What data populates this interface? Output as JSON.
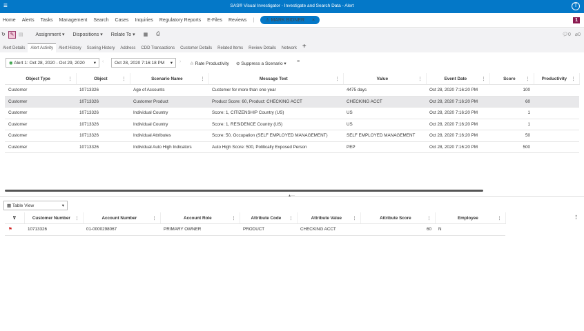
{
  "titlebar": {
    "title": "SAS® Visual Investigator - Investigate and Search Data - Alert",
    "menu_icon": "hamburger-icon",
    "user_icon": "user-icon"
  },
  "nav": {
    "items": [
      "Home",
      "Alerts",
      "Tasks",
      "Management",
      "Search",
      "Cases",
      "Inquiries",
      "Regulatory Reports",
      "E-Files",
      "Reviews"
    ],
    "chip": "MARK BIDNER",
    "badge": "1"
  },
  "toolbar": {
    "assignment": "Assignment ▾",
    "dispositions": "Dispositions ▾",
    "relate_to": "Relate To ▾",
    "comments": "0",
    "attachments": "0"
  },
  "tabs": [
    "Alert Details",
    "Alert Activity",
    "Alert History",
    "Scoring History",
    "Address",
    "CDD Transactions",
    "Customer Details",
    "Related Items",
    "Review Details",
    "Network"
  ],
  "filters": {
    "alert": "Alert 1: Oct 28, 2020 - Oct 29, 2020",
    "date": "Oct 28, 2020 7:16:18 PM",
    "rate": "Rate Productivity",
    "suppress": "Suppress a Scenario ▾"
  },
  "top_table": {
    "columns": [
      "Object Type",
      "Object",
      "Scenario Name",
      "Message Text",
      "Value",
      "Event Date",
      "Score",
      "Productivity"
    ],
    "rows": [
      [
        "Customer",
        "10713326",
        "Age of Accounts",
        "Customer for more than one year",
        "4475 days",
        "Oct 28, 2020 7:16:20 PM",
        "100",
        ""
      ],
      [
        "Customer",
        "10713326",
        "Customer Product",
        "Product Score: 60, Product: CHECKING ACCT",
        "CHECKING ACCT",
        "Oct 28, 2020 7:16:20 PM",
        "60",
        ""
      ],
      [
        "Customer",
        "10713326",
        "Individual Country",
        "Score: 1, CITIZENSHIP Country (US)",
        "US",
        "Oct 28, 2020 7:16:20 PM",
        "1",
        ""
      ],
      [
        "Customer",
        "10713326",
        "Individual Country",
        "Score: 1, RESIDENCE Country (US)",
        "US",
        "Oct 28, 2020 7:16:20 PM",
        "1",
        ""
      ],
      [
        "Customer",
        "10713326",
        "Individual Attributes",
        "Score: 50, Occupation (SELF EMPLOYED MANAGEMENT)",
        "SELF EMPLOYED MANAGEMENT",
        "Oct 28, 2020 7:16:20 PM",
        "50",
        ""
      ],
      [
        "Customer",
        "10713326",
        "Individual Auto High Indicators",
        "Auto High Score: 500, Politically Exposed Person",
        "PEP",
        "Oct 28, 2020 7:16:20 PM",
        "500",
        ""
      ]
    ],
    "selected_row": 1
  },
  "view_select": "Table View",
  "bottom_table": {
    "columns": [
      "Customer Number",
      "Account Number",
      "Account Role",
      "Attribute Code",
      "Attribute Value",
      "Attribute Score",
      "Employee"
    ],
    "rows": [
      [
        "10713326",
        "01-0000298067",
        "PRIMARY OWNER",
        "PRODUCT",
        "CHECKING ACCT",
        "60",
        "N"
      ]
    ]
  }
}
